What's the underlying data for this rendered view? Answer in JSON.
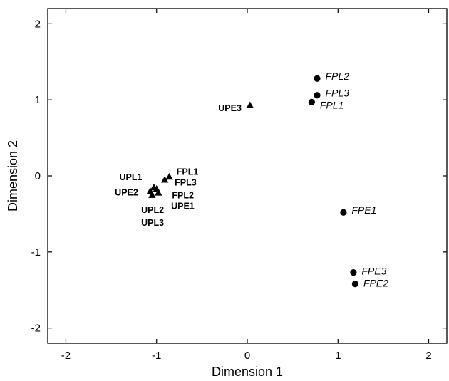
{
  "chart_data": {
    "type": "scatter",
    "title": "",
    "xlabel": "Dimension 1",
    "ylabel": "Dimension 2",
    "xlim": [
      -2.2,
      2.2
    ],
    "ylim": [
      -2.2,
      2.2
    ],
    "xticks": [
      -2,
      -1,
      0,
      1,
      2
    ],
    "yticks": [
      2,
      1,
      0,
      -1,
      -2
    ],
    "xtick_labels": [
      "-2",
      "-1",
      "0",
      "1",
      "2"
    ],
    "ytick_labels": [
      "2",
      "1",
      "0",
      "-1",
      "-2"
    ],
    "grid": false,
    "series": [
      {
        "marker": "triangle",
        "points": [
          {
            "x": 0.03,
            "y": 0.93
          },
          {
            "x": -0.86,
            "y": -0.01
          },
          {
            "x": -0.91,
            "y": -0.05
          },
          {
            "x": -1.0,
            "y": -0.17
          },
          {
            "x": -1.03,
            "y": -0.15
          },
          {
            "x": -1.07,
            "y": -0.2
          },
          {
            "x": -1.05,
            "y": -0.25
          },
          {
            "x": -0.98,
            "y": -0.22
          }
        ]
      },
      {
        "marker": "circle",
        "points": [
          {
            "x": 0.77,
            "y": 1.28
          },
          {
            "x": 0.77,
            "y": 1.06
          },
          {
            "x": 0.71,
            "y": 0.97
          },
          {
            "x": 1.06,
            "y": -0.48
          },
          {
            "x": 1.17,
            "y": -1.27
          },
          {
            "x": 1.19,
            "y": -1.42
          }
        ]
      }
    ],
    "annotations": [
      {
        "text": "UPE3",
        "x": -0.32,
        "y": 0.9,
        "style": "bold"
      },
      {
        "text": "FPL1",
        "x": -0.78,
        "y": 0.06,
        "style": "bold"
      },
      {
        "text": "FPL3",
        "x": -0.8,
        "y": -0.08,
        "style": "bold"
      },
      {
        "text": "FPL2",
        "x": -0.83,
        "y": -0.25,
        "style": "bold"
      },
      {
        "text": "UPE1",
        "x": -0.84,
        "y": -0.39,
        "style": "bold"
      },
      {
        "text": "UPL1",
        "x": -1.41,
        "y": -0.01,
        "style": "bold"
      },
      {
        "text": "UPE2",
        "x": -1.46,
        "y": -0.21,
        "style": "bold"
      },
      {
        "text": "UPL2",
        "x": -1.17,
        "y": -0.44,
        "style": "bold"
      },
      {
        "text": "UPL3",
        "x": -1.17,
        "y": -0.61,
        "style": "bold"
      },
      {
        "text": "FPL2",
        "x": 0.86,
        "y": 1.31,
        "style": "italic"
      },
      {
        "text": "FPL3",
        "x": 0.86,
        "y": 1.09,
        "style": "italic"
      },
      {
        "text": "FPL1",
        "x": 0.8,
        "y": 0.93,
        "style": "italic"
      },
      {
        "text": "FPE1",
        "x": 1.15,
        "y": -0.45,
        "style": "italic"
      },
      {
        "text": "FPE3",
        "x": 1.26,
        "y": -1.25,
        "style": "italic"
      },
      {
        "text": "FPE2",
        "x": 1.28,
        "y": -1.41,
        "style": "italic"
      }
    ]
  }
}
